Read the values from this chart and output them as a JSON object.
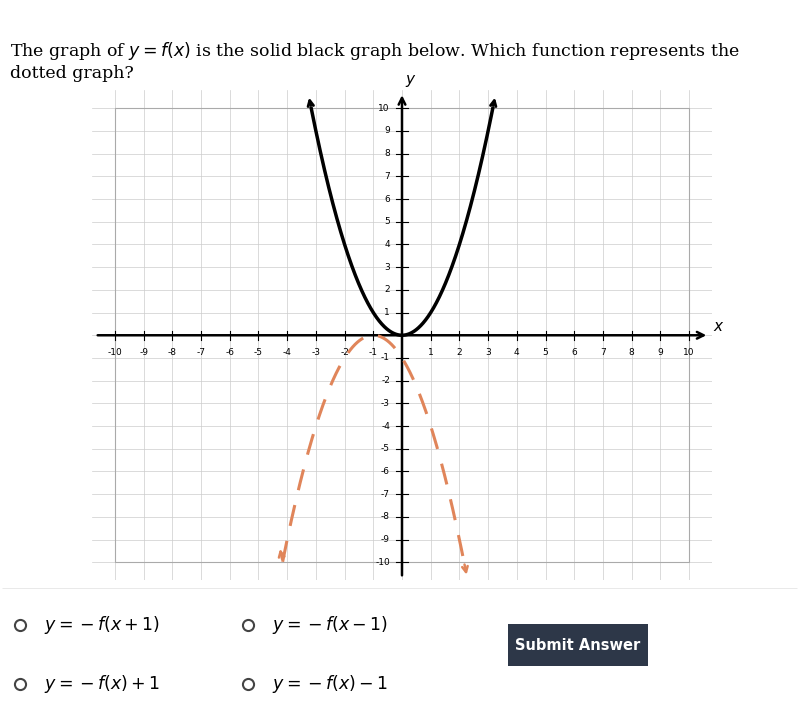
{
  "xlim": [
    -10,
    10
  ],
  "ylim": [
    -10,
    10
  ],
  "solid_color": "#000000",
  "dashed_color": "#E0855A",
  "grid_color": "#cccccc",
  "grid_lw": 0.5,
  "background_color": "#ffffff",
  "bottom_bg": "#f0f0f0",
  "submit_bg": "#2d3748",
  "submit_text": "Submit Answer",
  "text_line1": "The graph of $y = f(x)$ is the solid black graph below. Which function represents the",
  "text_line2": "dotted graph?",
  "choices": [
    "$y = -f(x+1)$",
    "$y = -f(x-1)$",
    "$y = -f(x)+1$",
    "$y = -f(x)-1$"
  ],
  "parabola_scale": 1.0,
  "solid_vertex_x": 0,
  "solid_vertex_y": 0,
  "dashed_vertex_x": -1,
  "dashed_vertex_y": 0
}
